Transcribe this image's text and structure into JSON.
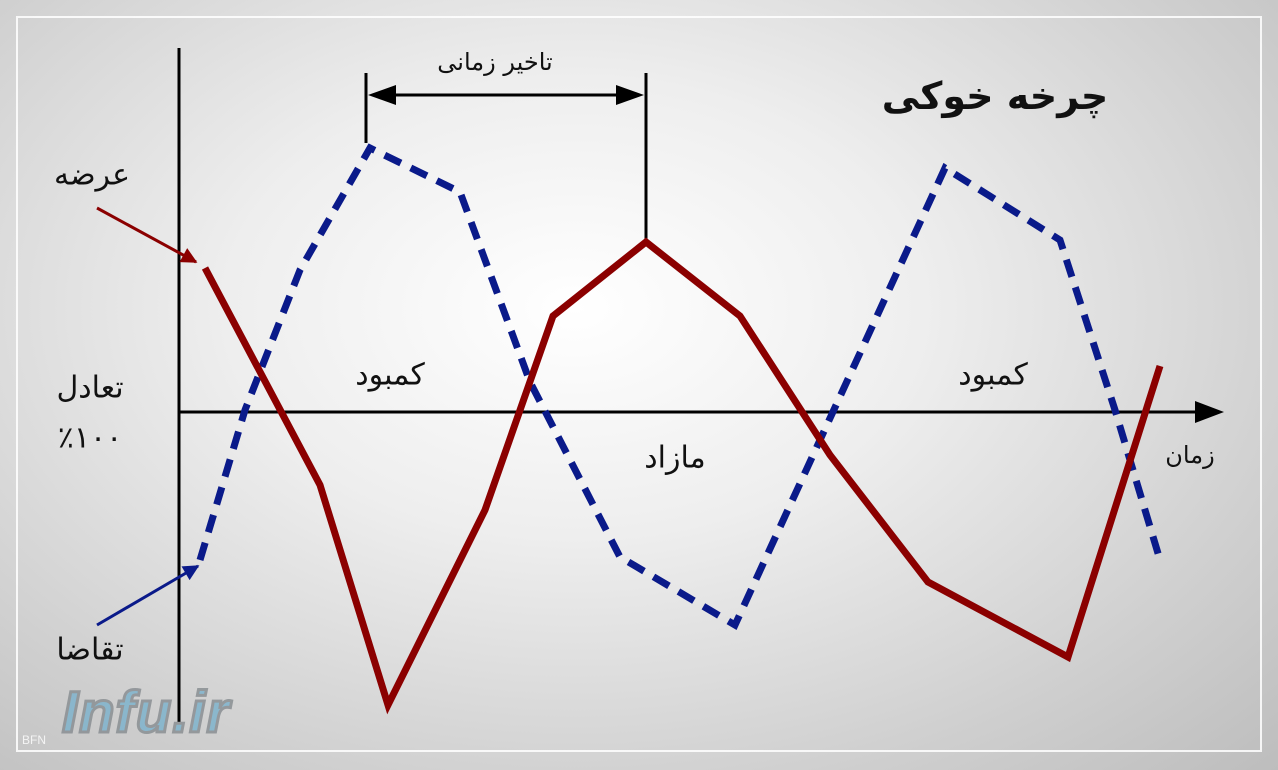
{
  "title": "چرخه خوکی",
  "labels": {
    "time_lag": "تاخیر زمانی",
    "supply": "عرضه",
    "demand": "تقاضا",
    "equilibrium": "تعادل",
    "equilibrium_pct": "٪۱۰۰",
    "shortage_1": "کمبود",
    "shortage_2": "کمبود",
    "surplus": "مازاد",
    "time": "زمان"
  },
  "watermark": {
    "text": "Infu.ir",
    "sub": "BFN"
  },
  "colors": {
    "supply": "#8b0000",
    "demand": "#0a1a8a",
    "axis": "#000000"
  }
}
